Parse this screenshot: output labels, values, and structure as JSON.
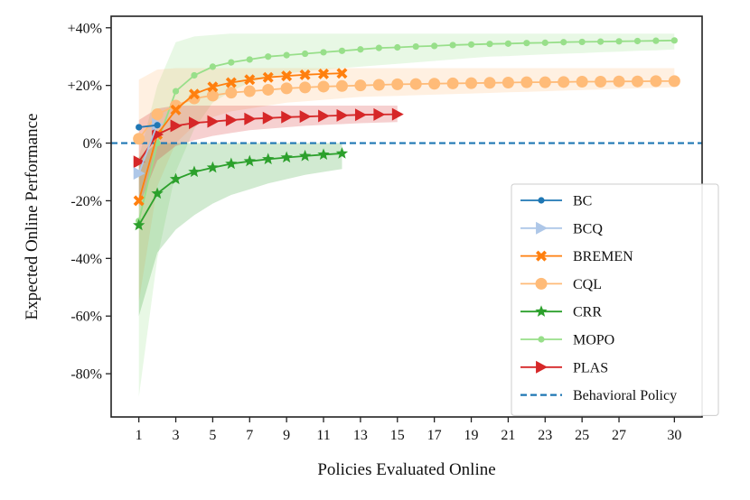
{
  "chart_data": {
    "type": "line",
    "title": "",
    "xlabel": "Policies Evaluated Online",
    "ylabel": "Expected Online Performance",
    "xlim": [
      -0.5,
      31.5
    ],
    "ylim": [
      -95,
      44
    ],
    "xticks": [
      1,
      3,
      5,
      7,
      9,
      11,
      13,
      15,
      17,
      19,
      21,
      23,
      25,
      27,
      30
    ],
    "yticks": [
      {
        "value": 40,
        "label": "+40%"
      },
      {
        "value": 20,
        "label": "+20%"
      },
      {
        "value": 0,
        "label": "0%"
      },
      {
        "value": -20,
        "label": "-20%"
      },
      {
        "value": -40,
        "label": "-40%"
      },
      {
        "value": -60,
        "label": "-60%"
      },
      {
        "value": -80,
        "label": "-80%"
      }
    ],
    "legend_position": "lower-right",
    "reference_line": {
      "name": "Behavioral Policy",
      "y": 0,
      "color": "#1f77b4",
      "style": "dashed"
    },
    "series": [
      {
        "name": "MOPO",
        "color": "#98df8a",
        "marker": "dot",
        "x": [
          1,
          2,
          3,
          4,
          5,
          6,
          7,
          8,
          9,
          10,
          11,
          12,
          13,
          14,
          15,
          16,
          17,
          18,
          19,
          20,
          21,
          22,
          23,
          24,
          25,
          26,
          27,
          28,
          29,
          30
        ],
        "y": [
          -27,
          0,
          18,
          23.5,
          26.5,
          28,
          29,
          30,
          30.5,
          31,
          31.5,
          32,
          32.5,
          33,
          33.2,
          33.5,
          33.7,
          34,
          34.2,
          34.4,
          34.5,
          34.7,
          34.8,
          35,
          35.1,
          35.2,
          35.3,
          35.4,
          35.5,
          35.6
        ],
        "band_upper": [
          -5,
          20,
          35,
          37,
          37.5,
          38,
          38,
          38,
          38,
          38,
          38,
          38,
          38,
          38,
          38,
          38,
          38,
          38,
          38,
          38,
          38,
          38,
          38,
          38,
          38,
          38,
          38,
          38,
          38,
          38
        ],
        "band_lower": [
          -88,
          -40,
          -10,
          5,
          14,
          18,
          21,
          23,
          24,
          25,
          25.5,
          26,
          26.5,
          27,
          27.5,
          28,
          28.5,
          29,
          29.5,
          30,
          30.2,
          30.5,
          30.8,
          31,
          31.2,
          31.5,
          31.7,
          32,
          32.2,
          32.5
        ]
      },
      {
        "name": "CQL",
        "color": "#ffbb78",
        "marker": "circle",
        "x": [
          1,
          2,
          3,
          4,
          5,
          6,
          7,
          8,
          9,
          10,
          11,
          12,
          13,
          14,
          15,
          16,
          17,
          18,
          19,
          20,
          21,
          22,
          23,
          24,
          25,
          26,
          27,
          28,
          29,
          30
        ],
        "y": [
          1.5,
          10,
          13,
          15.5,
          16.5,
          17.5,
          18,
          18.5,
          19,
          19.3,
          19.6,
          19.8,
          20,
          20.2,
          20.4,
          20.5,
          20.6,
          20.7,
          20.8,
          20.9,
          21,
          21.1,
          21.1,
          21.2,
          21.3,
          21.3,
          21.4,
          21.4,
          21.5,
          21.5
        ],
        "band_upper": [
          22,
          25.5,
          26,
          26,
          26,
          26,
          26,
          26,
          26,
          26,
          26,
          26,
          26,
          26,
          26,
          26,
          26,
          26,
          26,
          26,
          26,
          26,
          26,
          26,
          26,
          26,
          26,
          26,
          26,
          26
        ],
        "band_lower": [
          -55,
          -15,
          0,
          6,
          9,
          11,
          12,
          13,
          14,
          14.5,
          15,
          15.5,
          16,
          16.2,
          16.4,
          16.6,
          16.8,
          17,
          17.2,
          17.4,
          17.6,
          17.8,
          18,
          18.2,
          18.4,
          18.6,
          18.8,
          19,
          19.2,
          19.4
        ]
      },
      {
        "name": "BREMEN",
        "color": "#ff7f0e",
        "marker": "x",
        "x": [
          1,
          2,
          3,
          4,
          5,
          6,
          7,
          8,
          9,
          10,
          11,
          12
        ],
        "y": [
          -20,
          3,
          11.5,
          17,
          19.5,
          21,
          22,
          22.8,
          23.3,
          23.7,
          24,
          24.2
        ],
        "band_upper": null,
        "band_lower": null
      },
      {
        "name": "CRR",
        "color": "#2ca02c",
        "marker": "star",
        "x": [
          1,
          2,
          3,
          4,
          5,
          6,
          7,
          8,
          9,
          10,
          11,
          12
        ],
        "y": [
          -28.5,
          -17.5,
          -12.5,
          -10,
          -8.5,
          -7.2,
          -6.3,
          -5.6,
          -5,
          -4.5,
          -4,
          -3.6
        ],
        "band_upper": [
          -5,
          0,
          0,
          0,
          0,
          0,
          0,
          0,
          0,
          0,
          0,
          0
        ],
        "band_lower": [
          -60,
          -38,
          -30,
          -25,
          -21,
          -18,
          -16,
          -14,
          -12.5,
          -11,
          -10,
          -9
        ]
      },
      {
        "name": "PLAS",
        "color": "#d62728",
        "marker": "triangle-right",
        "x": [
          1,
          2,
          3,
          4,
          5,
          6,
          7,
          8,
          9,
          10,
          11,
          12,
          13,
          14,
          15
        ],
        "y": [
          -6.5,
          3,
          6,
          7,
          7.5,
          8,
          8.4,
          8.7,
          9,
          9.2,
          9.4,
          9.6,
          9.8,
          9.9,
          10
        ],
        "band_upper": [
          8,
          12,
          13,
          13,
          13,
          13,
          13,
          13,
          13,
          13,
          13,
          13,
          13,
          13,
          13
        ],
        "band_lower": [
          -22,
          -6,
          -1,
          1,
          2.5,
          3.5,
          4.5,
          5,
          5.5,
          6,
          6.3,
          6.6,
          6.9,
          7.1,
          7.3
        ]
      },
      {
        "name": "BCQ",
        "color": "#aec7e8",
        "marker": "triangle-right",
        "x": [
          1,
          2
        ],
        "y": [
          -10.5,
          6.5
        ],
        "band_upper": null,
        "band_lower": null
      },
      {
        "name": "BC",
        "color": "#1f77b4",
        "marker": "dot",
        "x": [
          1,
          2
        ],
        "y": [
          5.5,
          6.2
        ],
        "band_upper": null,
        "band_lower": null
      }
    ],
    "legend_order": [
      "BC",
      "BCQ",
      "BREMEN",
      "CQL",
      "CRR",
      "MOPO",
      "PLAS",
      "Behavioral Policy"
    ]
  }
}
